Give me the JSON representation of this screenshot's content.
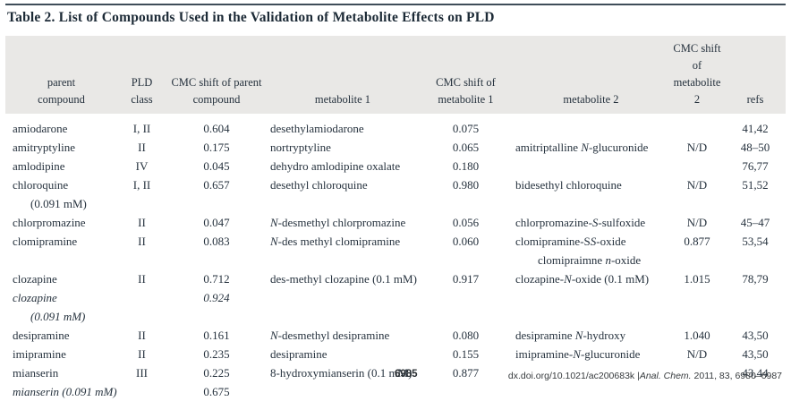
{
  "title": "Table 2.  List of Compounds Used in the Validation of Metabolite Effects on PLD",
  "colors": {
    "top_rule": "#3f4d59",
    "header_bg": "#e9e8e6",
    "body_text": "#26323e",
    "title_text": "#1c2a36"
  },
  "table": {
    "headers": [
      {
        "line1": "parent",
        "line2": "compound"
      },
      {
        "line1": "PLD",
        "line2": "class"
      },
      {
        "line1": "CMC shift of parent",
        "line2": "compound"
      },
      {
        "line1": "",
        "line2": "metabolite 1"
      },
      {
        "line1": "CMC shift of",
        "line2": "metabolite 1"
      },
      {
        "line1": "",
        "line2": "metabolite 2"
      },
      {
        "line1": "CMC shift of",
        "line2": "metabolite 2"
      },
      {
        "line1": "",
        "line2": "refs"
      }
    ],
    "rows": [
      [
        "amiodarone",
        "I, II",
        "0.604",
        "desethylamiodarone",
        "0.075",
        "",
        "",
        "41,42"
      ],
      [
        "amitryptyline",
        "II",
        "0.175",
        "nortryptyline",
        "0.065",
        "amitriptalline *N*-glucuronide",
        "N/D",
        "48–50"
      ],
      [
        "amlodipine",
        "IV",
        "0.045",
        "dehydro amlodipine oxalate",
        "0.180",
        "",
        "",
        "76,77"
      ],
      [
        "chloroquine",
        "I, II",
        "0.657",
        "desethyl chloroquine",
        "0.980",
        "bidesethyl chloroquine",
        "N/D",
        "51,52"
      ],
      [
        {
          "text": "(0.091 mM)",
          "indent": true
        },
        "",
        "",
        "",
        "",
        "",
        "",
        ""
      ],
      [
        "chlorpromazine",
        "II",
        "0.047",
        "*N*-desmethyl chlorpromazine",
        "0.056",
        "chlorpromazine-*S*-sulfoxide",
        "N/D",
        "45–47"
      ],
      [
        "clomipramine",
        "II",
        "0.083",
        "*N*-des methyl clomipramine",
        "0.060",
        "clomipramine-S*S*-oxide",
        "0.877",
        "53,54"
      ],
      [
        "",
        "",
        "",
        "",
        "",
        {
          "text": "clomipraimne *n*-oxide",
          "indent": true
        },
        "",
        ""
      ],
      [
        "clozapine",
        "II",
        "0.712",
        "des-methyl clozapine (0.1 mM)",
        "0.917",
        "clozapine-*N*-oxide (0.1 mM)",
        "1.015",
        "78,79"
      ],
      [
        {
          "text": "clozapine",
          "italic": true
        },
        "",
        {
          "text": "0.924",
          "italic": true
        },
        "",
        "",
        "",
        "",
        ""
      ],
      [
        {
          "text": "(0.091 mM)",
          "italic": true,
          "indent": true
        },
        "",
        "",
        "",
        "",
        "",
        "",
        ""
      ],
      [
        "desipramine",
        "II",
        "0.161",
        "*N*-desmethyl desipramine",
        "0.080",
        "desipramine *N*-hydroxy",
        "1.040",
        "43,50"
      ],
      [
        "imipramine",
        "II",
        "0.235",
        "desipramine",
        "0.155",
        "imipramine-*N*-glucuronide",
        "N/D",
        "43,50"
      ],
      [
        "mianserin",
        "III",
        "0.225",
        "8-hydroxymianserin (0.1 mM)",
        "0.877",
        "",
        "",
        "43,44"
      ],
      [
        {
          "text": "mianserin (0.091 mM)",
          "italic": true
        },
        "",
        "0.675",
        "",
        "",
        "",
        "",
        ""
      ]
    ]
  },
  "footer": {
    "page_number": "6985",
    "citation": "dx.doi.org/10.1021/ac200683k |*Anal. Chem.* 2011, 83, 6980–6987"
  }
}
